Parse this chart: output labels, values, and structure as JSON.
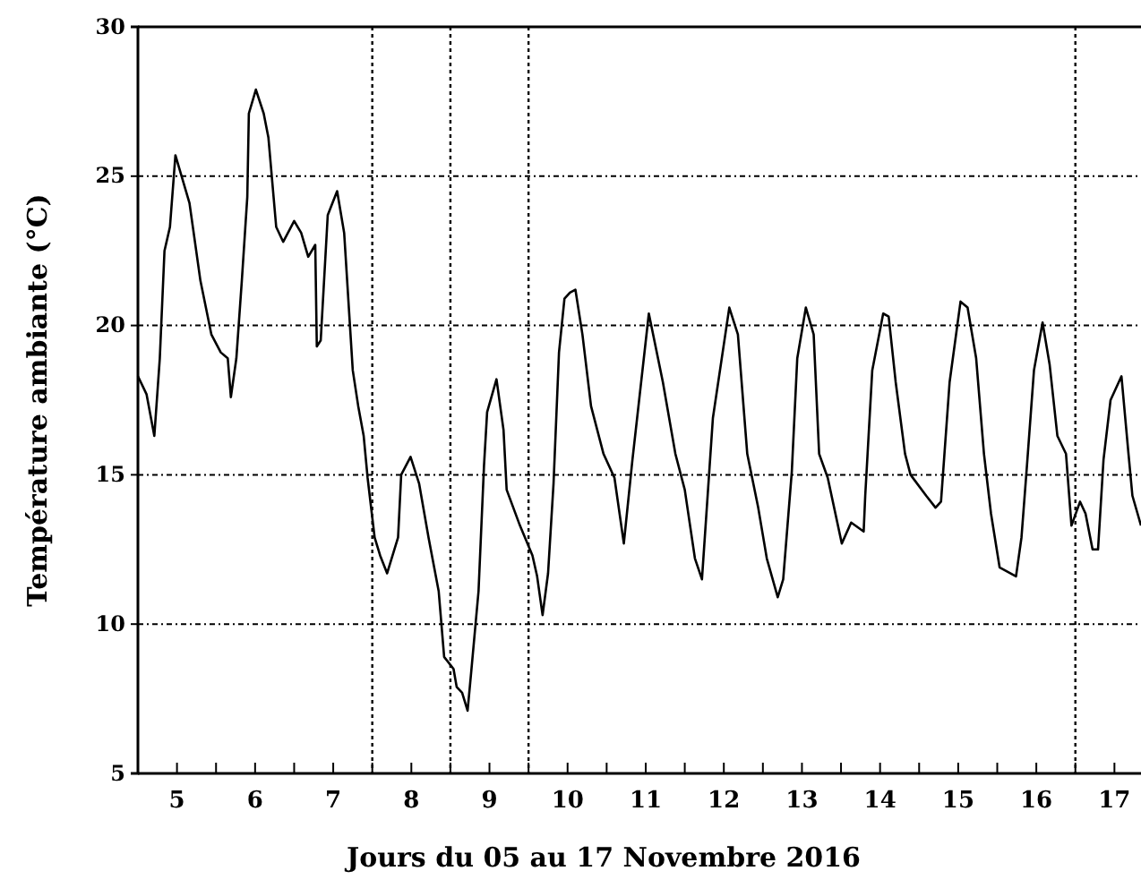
{
  "chart_data": {
    "type": "line",
    "xlabel": "Jours du 05 au 17 Novembre 2016",
    "ylabel": "Température ambiante (°C)",
    "xlim": [
      5,
      17.84
    ],
    "ylim": [
      5,
      30
    ],
    "xticks": [
      {
        "value": 5,
        "label": null
      },
      {
        "value": 5.5,
        "label": "5"
      },
      {
        "value": 6,
        "label": null
      },
      {
        "value": 6.5,
        "label": "6"
      },
      {
        "value": 7,
        "label": null
      },
      {
        "value": 7.5,
        "label": "7"
      },
      {
        "value": 8,
        "label": null
      },
      {
        "value": 8.5,
        "label": "8"
      },
      {
        "value": 9,
        "label": null
      },
      {
        "value": 9.5,
        "label": "9"
      },
      {
        "value": 10,
        "label": null
      },
      {
        "value": 10.5,
        "label": "10"
      },
      {
        "value": 11,
        "label": null
      },
      {
        "value": 11.5,
        "label": "11"
      },
      {
        "value": 12,
        "label": null
      },
      {
        "value": 12.5,
        "label": "12"
      },
      {
        "value": 13,
        "label": null
      },
      {
        "value": 13.5,
        "label": "13"
      },
      {
        "value": 14,
        "label": null
      },
      {
        "value": 14.5,
        "label": "14"
      },
      {
        "value": 15,
        "label": null
      },
      {
        "value": 15.5,
        "label": "15"
      },
      {
        "value": 16,
        "label": null
      },
      {
        "value": 16.5,
        "label": "16"
      },
      {
        "value": 17,
        "label": null
      },
      {
        "value": 17.5,
        "label": "17"
      }
    ],
    "yticks": [
      5,
      10,
      15,
      20,
      25,
      30
    ],
    "grid": "y",
    "marker": "none",
    "line_style": "solid",
    "ref_lines": [
      {
        "axis": "x",
        "value": 8,
        "line_style": "dotted"
      },
      {
        "axis": "x",
        "value": 9,
        "line_style": "dotted"
      },
      {
        "axis": "x",
        "value": 10,
        "line_style": "dotted"
      },
      {
        "axis": "x",
        "value": 17,
        "line_style": "dotted"
      }
    ],
    "series": [
      {
        "color": "#000000",
        "x": [
          5.0,
          5.11,
          5.21,
          5.28,
          5.34,
          5.41,
          5.48,
          5.57,
          5.66,
          5.8,
          5.94,
          6.06,
          6.15,
          6.19,
          6.26,
          6.33,
          6.4,
          6.42,
          6.51,
          6.61,
          6.67,
          6.77,
          6.86,
          7.0,
          7.09,
          7.18,
          7.27,
          7.29,
          7.34,
          7.43,
          7.55,
          7.64,
          7.75,
          7.82,
          7.89,
          7.94,
          8.03,
          8.1,
          8.19,
          8.33,
          8.37,
          8.49,
          8.6,
          8.72,
          8.85,
          8.92,
          9.04,
          9.08,
          9.15,
          9.22,
          9.27,
          9.36,
          9.43,
          9.47,
          9.59,
          9.68,
          9.72,
          9.89,
          10.05,
          10.11,
          10.18,
          10.25,
          10.32,
          10.39,
          10.46,
          10.53,
          10.6,
          10.69,
          10.8,
          10.96,
          11.1,
          11.22,
          11.33,
          11.54,
          11.72,
          11.88,
          12.0,
          12.13,
          12.22,
          12.36,
          12.57,
          12.68,
          12.8,
          12.94,
          13.05,
          13.19,
          13.26,
          13.37,
          13.44,
          13.55,
          13.65,
          13.72,
          13.83,
          14.01,
          14.13,
          14.29,
          14.31,
          14.4,
          14.54,
          14.61,
          14.7,
          14.82,
          14.89,
          15.09,
          15.21,
          15.28,
          15.39,
          15.53,
          15.62,
          15.73,
          15.83,
          15.92,
          16.03,
          16.24,
          16.31,
          16.38,
          16.47,
          16.58,
          16.67,
          16.77,
          16.88,
          16.95,
          17.06,
          17.13,
          17.22,
          17.29,
          17.36,
          17.45,
          17.59,
          17.68,
          17.73,
          17.84
        ],
        "values": [
          18.3,
          17.7,
          16.3,
          18.9,
          22.5,
          23.3,
          25.7,
          24.9,
          24.1,
          21.5,
          19.7,
          19.1,
          18.9,
          17.6,
          18.9,
          21.5,
          24.3,
          27.1,
          27.9,
          27.1,
          26.3,
          23.3,
          22.8,
          23.5,
          23.1,
          22.3,
          22.7,
          19.3,
          19.5,
          23.7,
          24.5,
          23.1,
          18.5,
          17.3,
          16.3,
          14.9,
          12.9,
          12.3,
          11.7,
          12.9,
          15.0,
          15.6,
          14.7,
          12.9,
          11.1,
          8.9,
          8.5,
          7.9,
          7.7,
          7.1,
          8.5,
          11.1,
          15.3,
          17.1,
          18.2,
          16.5,
          14.5,
          13.3,
          12.3,
          11.6,
          10.3,
          11.7,
          14.7,
          19.1,
          20.9,
          21.1,
          21.2,
          19.7,
          17.3,
          15.7,
          14.9,
          12.7,
          15.5,
          20.4,
          18.1,
          15.7,
          14.5,
          12.2,
          11.5,
          16.9,
          20.6,
          19.7,
          15.7,
          13.9,
          12.2,
          10.9,
          11.5,
          15.1,
          18.9,
          20.6,
          19.7,
          15.7,
          14.9,
          12.7,
          13.4,
          13.1,
          14.3,
          18.5,
          20.4,
          20.3,
          18.1,
          15.7,
          15.0,
          14.3,
          13.9,
          14.1,
          18.1,
          20.8,
          20.6,
          18.9,
          15.7,
          13.7,
          11.9,
          11.6,
          12.9,
          15.3,
          18.5,
          20.1,
          18.7,
          16.3,
          15.7,
          13.3,
          14.1,
          13.7,
          12.5,
          12.5,
          15.5,
          17.5,
          18.3,
          15.7,
          14.3,
          13.3
        ]
      }
    ]
  }
}
